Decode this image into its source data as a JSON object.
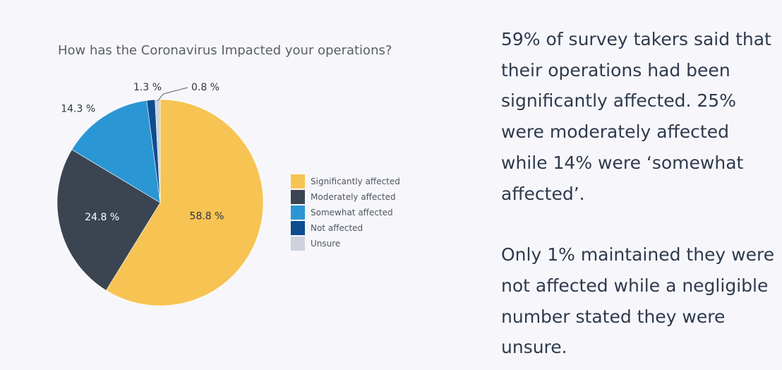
{
  "chart_data": {
    "type": "pie",
    "title": "How has the Coronavirus Impacted your operations?",
    "categories": [
      "Significantly affected",
      "Moderately affected",
      "Somewhat affected",
      "Not affected",
      "Unsure"
    ],
    "values": [
      58.8,
      24.8,
      14.3,
      1.3,
      0.8
    ],
    "labels": [
      "58.8 %",
      "24.8 %",
      "14.3 %",
      "1.3 %",
      "0.8 %"
    ],
    "colors": [
      "#f7c353",
      "#3b4552",
      "#2b96d4",
      "#0e4d8f",
      "#cdd2dc"
    ],
    "legend_position": "right"
  },
  "commentary": {
    "paragraph1": "59% of survey takers said that their operations had been significantly affected. 25% were moderately affected while 14% were ‘somewhat affected’.",
    "paragraph2": "Only 1% maintained they were not affected while a negligible number stated they were unsure."
  }
}
